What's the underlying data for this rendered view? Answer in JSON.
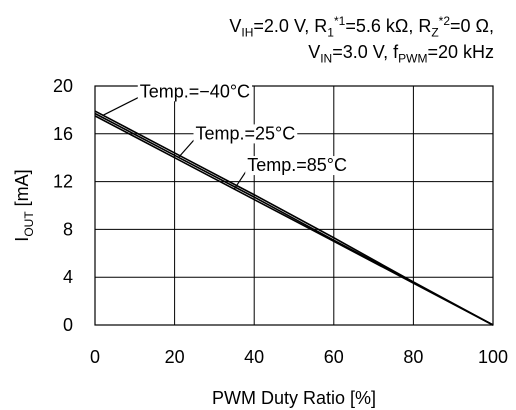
{
  "conditions": {
    "line1": {
      "v_sub": "IH",
      "v_val": "=2.0 V, R",
      "r1_sub": "1",
      "r1_sup": "*1",
      "r1_val": "=5.6 kΩ, R",
      "rz_sub": "Z",
      "rz_sup": "*2",
      "rz_val": "=0 Ω,"
    },
    "line2": {
      "vin_sub": "IN",
      "vin_val": "=3.0 V, f",
      "f_sub": "PWM",
      "f_val": "=20 kHz"
    }
  },
  "chart_data": {
    "type": "line",
    "xlabel": "PWM Duty Ratio [%]",
    "ylabel_main": "I",
    "ylabel_sub": "OUT",
    "ylabel_unit": " [mA]",
    "xlim": [
      0,
      100
    ],
    "ylim": [
      0,
      20
    ],
    "xticks": [
      0,
      20,
      40,
      60,
      80,
      100
    ],
    "yticks": [
      0,
      4,
      8,
      12,
      16,
      20
    ],
    "grid": true,
    "series": [
      {
        "name": "Temp.=−40°C",
        "x": [
          0,
          20,
          40,
          60,
          80,
          100
        ],
        "y": [
          17.9,
          14.4,
          10.9,
          7.3,
          3.6,
          0
        ]
      },
      {
        "name": "Temp.=25°C",
        "x": [
          0,
          20,
          40,
          60,
          80,
          100
        ],
        "y": [
          17.7,
          14.2,
          10.7,
          7.1,
          3.55,
          0
        ]
      },
      {
        "name": "Temp.=85°C",
        "x": [
          0,
          20,
          40,
          60,
          80,
          100
        ],
        "y": [
          17.5,
          14.0,
          10.5,
          7.0,
          3.5,
          0
        ]
      }
    ],
    "annotations": [
      {
        "series": 0,
        "text": "Temp.=−40°C",
        "anchor_x": 2,
        "text_x": 11
      },
      {
        "series": 1,
        "text": "Temp.=25°C",
        "anchor_x": 21,
        "text_x": 25
      },
      {
        "series": 2,
        "text": "Temp.=85°C",
        "anchor_x": 35,
        "text_x": 38
      }
    ]
  }
}
